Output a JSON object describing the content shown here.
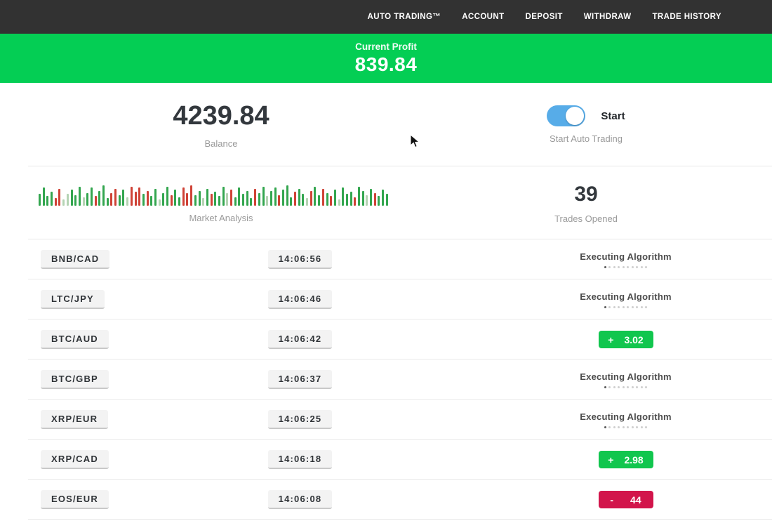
{
  "nav": {
    "items": [
      {
        "label": "AUTO TRADING™"
      },
      {
        "label": "ACCOUNT"
      },
      {
        "label": "DEPOSIT"
      },
      {
        "label": "WITHDRAW"
      },
      {
        "label": "TRADE HISTORY"
      }
    ]
  },
  "profit_banner": {
    "label": "Current Profit",
    "value": "839.84"
  },
  "stats": {
    "balance_value": "4239.84",
    "balance_label": "Balance",
    "toggle_label": "Start",
    "toggle_caption": "Start Auto Trading",
    "auto_trading_on": true,
    "market_label": "Market Analysis",
    "trades_opened_value": "39",
    "trades_opened_label": "Trades Opened"
  },
  "trades_table": {
    "executing_label": "Executing Algorithm",
    "progress_dots": 10,
    "rows": [
      {
        "pair": "BNB/CAD",
        "time": "14:06:56",
        "status": "executing"
      },
      {
        "pair": "LTC/JPY",
        "time": "14:06:46",
        "status": "executing"
      },
      {
        "pair": "BTC/AUD",
        "time": "14:06:42",
        "status": "profit",
        "result_sign": "+",
        "result_value": "3.02"
      },
      {
        "pair": "BTC/GBP",
        "time": "14:06:37",
        "status": "executing"
      },
      {
        "pair": "XRP/EUR",
        "time": "14:06:25",
        "status": "executing"
      },
      {
        "pair": "XRP/CAD",
        "time": "14:06:18",
        "status": "profit",
        "result_sign": "+",
        "result_value": "2.98"
      },
      {
        "pair": "EOS/EUR",
        "time": "14:06:08",
        "status": "loss",
        "result_sign": "-",
        "result_value": "44"
      }
    ]
  },
  "colors": {
    "nav_bg": "#323232",
    "banner_green": "#04ce54",
    "profit_green": "#11c64e",
    "loss_red": "#d2154b",
    "toggle_blue": "#57ace8"
  },
  "chart_data": {
    "type": "bar",
    "title": "Market Analysis",
    "ylim": [
      0,
      1
    ],
    "legend": false,
    "palette": {
      "g": "#33a64f",
      "r": "#cf4236",
      "lg": "#b5d4b4",
      "lr": "#e4aca5"
    },
    "bars": [
      [
        0.55,
        "g"
      ],
      [
        0.85,
        "g"
      ],
      [
        0.45,
        "g"
      ],
      [
        0.65,
        "g"
      ],
      [
        0.35,
        "r"
      ],
      [
        0.8,
        "r"
      ],
      [
        0.3,
        "lg"
      ],
      [
        0.55,
        "lg"
      ],
      [
        0.75,
        "g"
      ],
      [
        0.5,
        "g"
      ],
      [
        0.9,
        "g"
      ],
      [
        0.4,
        "lg"
      ],
      [
        0.6,
        "g"
      ],
      [
        0.85,
        "g"
      ],
      [
        0.45,
        "r"
      ],
      [
        0.7,
        "g"
      ],
      [
        0.95,
        "g"
      ],
      [
        0.35,
        "g"
      ],
      [
        0.6,
        "r"
      ],
      [
        0.8,
        "r"
      ],
      [
        0.5,
        "g"
      ],
      [
        0.75,
        "g"
      ],
      [
        0.4,
        "lg"
      ],
      [
        0.9,
        "r"
      ],
      [
        0.65,
        "r"
      ],
      [
        0.85,
        "r"
      ],
      [
        0.55,
        "g"
      ],
      [
        0.7,
        "r"
      ],
      [
        0.45,
        "g"
      ],
      [
        0.8,
        "g"
      ],
      [
        0.3,
        "lg"
      ],
      [
        0.6,
        "g"
      ],
      [
        0.9,
        "g"
      ],
      [
        0.5,
        "r"
      ],
      [
        0.75,
        "g"
      ],
      [
        0.4,
        "g"
      ],
      [
        0.85,
        "r"
      ],
      [
        0.6,
        "r"
      ],
      [
        0.95,
        "r"
      ],
      [
        0.5,
        "g"
      ],
      [
        0.7,
        "g"
      ],
      [
        0.35,
        "lg"
      ],
      [
        0.8,
        "g"
      ],
      [
        0.55,
        "r"
      ],
      [
        0.65,
        "g"
      ],
      [
        0.45,
        "g"
      ],
      [
        0.9,
        "g"
      ],
      [
        0.6,
        "lg"
      ],
      [
        0.75,
        "r"
      ],
      [
        0.4,
        "g"
      ],
      [
        0.85,
        "g"
      ],
      [
        0.55,
        "g"
      ],
      [
        0.7,
        "g"
      ],
      [
        0.35,
        "g"
      ],
      [
        0.8,
        "r"
      ],
      [
        0.6,
        "g"
      ],
      [
        0.9,
        "g"
      ],
      [
        0.45,
        "lg"
      ],
      [
        0.7,
        "g"
      ],
      [
        0.85,
        "g"
      ],
      [
        0.5,
        "r"
      ],
      [
        0.75,
        "g"
      ],
      [
        0.95,
        "g"
      ],
      [
        0.4,
        "g"
      ],
      [
        0.65,
        "r"
      ],
      [
        0.8,
        "g"
      ],
      [
        0.55,
        "g"
      ],
      [
        0.35,
        "lg"
      ],
      [
        0.7,
        "r"
      ],
      [
        0.9,
        "g"
      ],
      [
        0.5,
        "g"
      ],
      [
        0.8,
        "r"
      ],
      [
        0.6,
        "g"
      ],
      [
        0.45,
        "r"
      ],
      [
        0.75,
        "g"
      ],
      [
        0.3,
        "lg"
      ],
      [
        0.85,
        "g"
      ],
      [
        0.55,
        "g"
      ],
      [
        0.65,
        "g"
      ],
      [
        0.4,
        "r"
      ],
      [
        0.9,
        "g"
      ],
      [
        0.7,
        "g"
      ],
      [
        0.5,
        "lg"
      ],
      [
        0.8,
        "g"
      ],
      [
        0.6,
        "r"
      ],
      [
        0.45,
        "g"
      ],
      [
        0.75,
        "g"
      ],
      [
        0.55,
        "g"
      ]
    ]
  }
}
